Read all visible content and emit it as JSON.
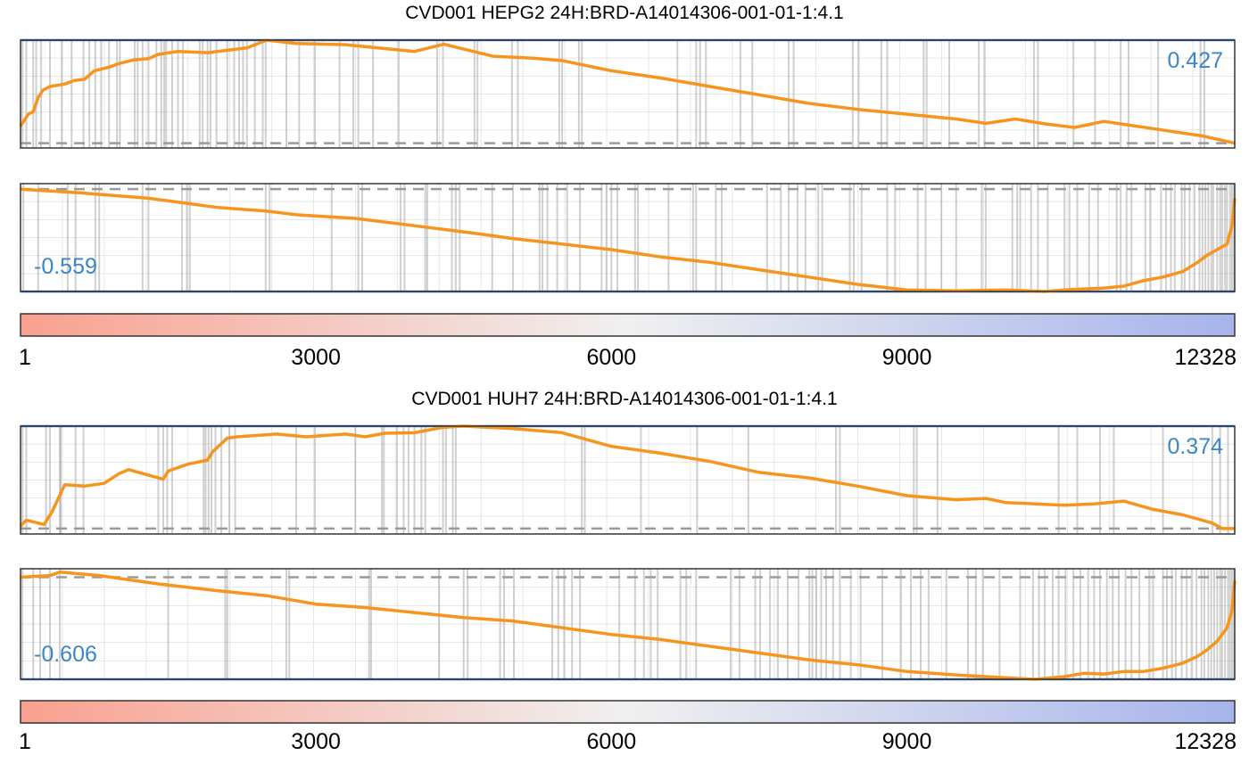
{
  "chart_data": [
    {
      "type": "line",
      "title": "CVD001  HEPG2  24H:BRD-A14014306-001-01-1:4.1",
      "x_axis": {
        "ticks": [
          "1",
          "3000",
          "6000",
          "9000",
          "12328"
        ],
        "range": [
          1,
          12328
        ]
      },
      "colorbar": {
        "from": "#f9a08f",
        "mid": "#f0f0f0",
        "to": "#a6b4ec"
      },
      "colors": {
        "curve": "#f7941d",
        "score_line": "#3b7bbf",
        "score_text": "#3b86c6",
        "zero_line": "#9a9a9a"
      },
      "panels": [
        {
          "name": "up",
          "score_label": "0.427",
          "extreme": 0.427,
          "y_range": [
            -0.02,
            0.427
          ],
          "curve": {
            "x": [
              1,
              80,
              130,
              180,
              230,
              300,
              450,
              550,
              650,
              750,
              900,
              1000,
              1150,
              1300,
              1400,
              1600,
              1900,
              2100,
              2300,
              2500,
              2800,
              3300,
              4000,
              4300,
              4800,
              5200,
              5500,
              6000,
              6500,
              7000,
              7500,
              8000,
              8500,
              9000,
              9500,
              9800,
              10100,
              10400,
              10700,
              11000,
              11500,
              12000,
              12328
            ],
            "y": [
              0.07,
              0.12,
              0.13,
              0.19,
              0.22,
              0.235,
              0.245,
              0.26,
              0.265,
              0.3,
              0.315,
              0.33,
              0.345,
              0.35,
              0.368,
              0.38,
              0.375,
              0.385,
              0.395,
              0.427,
              0.413,
              0.408,
              0.38,
              0.41,
              0.36,
              0.352,
              0.342,
              0.3,
              0.27,
              0.235,
              0.2,
              0.165,
              0.14,
              0.12,
              0.1,
              0.082,
              0.1,
              0.08,
              0.065,
              0.09,
              0.06,
              0.03,
              0.0
            ]
          },
          "hits": [
            20,
            60,
            130,
            160,
            210,
            300,
            420,
            520,
            640,
            700,
            760,
            820,
            900,
            980,
            1010,
            1160,
            1190,
            1240,
            1300,
            1380,
            1430,
            1460,
            1480,
            1540,
            1600,
            1650,
            1820,
            1850,
            1900,
            1930,
            1990,
            2100,
            2170,
            2220,
            2260,
            2300,
            2380,
            2460,
            2490,
            2700,
            2830,
            2990,
            3240,
            3380,
            3430,
            3580,
            3840,
            4230,
            4290,
            4610,
            4640,
            4990,
            5050,
            5470,
            5500,
            5670,
            5700,
            6670,
            6860,
            6900,
            6960,
            7310,
            7430,
            7800,
            7850,
            8450,
            8510,
            8740,
            8800,
            9170,
            9200,
            9430,
            9730,
            9790,
            10290,
            10330,
            10690,
            10910,
            11170,
            11250,
            11550,
            11980,
            12020
          ]
        },
        {
          "name": "down",
          "score_label": "-0.559",
          "extreme": -0.559,
          "y_range": [
            -0.559,
            0.03
          ],
          "curve": {
            "x": [
              1,
              600,
              1300,
              2000,
              2500,
              2800,
              3400,
              4000,
              4300,
              4600,
              5000,
              5500,
              6000,
              6500,
              7000,
              7500,
              8000,
              8500,
              9000,
              9500,
              10000,
              10400,
              10600,
              10800,
              11000,
              11200,
              11400,
              11600,
              11800,
              11950,
              12050,
              12150,
              12250,
              12300,
              12328
            ],
            "y": [
              0.0,
              -0.02,
              -0.05,
              -0.1,
              -0.12,
              -0.14,
              -0.16,
              -0.2,
              -0.22,
              -0.24,
              -0.27,
              -0.3,
              -0.33,
              -0.37,
              -0.4,
              -0.44,
              -0.48,
              -0.52,
              -0.55,
              -0.555,
              -0.55,
              -0.559,
              -0.55,
              -0.545,
              -0.54,
              -0.53,
              -0.5,
              -0.48,
              -0.45,
              -0.4,
              -0.36,
              -0.33,
              -0.3,
              -0.2,
              -0.05
            ]
          },
          "hits": [
            30,
            180,
            480,
            560,
            760,
            800,
            1240,
            1300,
            1640,
            1690,
            1720,
            2490,
            2530,
            3160,
            3430,
            3470,
            3860,
            3900,
            4110,
            4130,
            4380,
            4420,
            4460,
            4790,
            5000,
            5270,
            5300,
            5350,
            5450,
            5550,
            5680,
            5900,
            5950,
            6000,
            6060,
            6240,
            6270,
            6580,
            6830,
            6860,
            7060,
            7120,
            7580,
            7720,
            7800,
            7890,
            7970,
            8100,
            8140,
            8420,
            8460,
            8540,
            8800,
            8880,
            9110,
            9190,
            9350,
            9500,
            9760,
            9800,
            10070,
            10120,
            10150,
            10260,
            10330,
            10430,
            10600,
            10650,
            10730,
            10850,
            10940,
            11130,
            11170,
            11230,
            11280,
            11420,
            11470,
            11580,
            11630,
            11680,
            11720,
            11790,
            11820,
            11870,
            11920,
            11970,
            12000,
            12030,
            12060,
            12090,
            12110,
            12150,
            12180,
            12200,
            12230,
            12250,
            12280,
            12300,
            12320
          ]
        }
      ]
    },
    {
      "type": "line",
      "title": "CVD001  HUH7  24H:BRD-A14014306-001-01-1:4.1",
      "x_axis": {
        "ticks": [
          "1",
          "3000",
          "6000",
          "9000",
          "12328"
        ],
        "range": [
          1,
          12328
        ]
      },
      "colorbar": {
        "from": "#f9a08f",
        "mid": "#f0f0f0",
        "to": "#a6b4ec"
      },
      "colors": {
        "curve": "#f7941d",
        "score_line": "#3b7bbf",
        "score_text": "#3b86c6",
        "zero_line": "#9a9a9a"
      },
      "panels": [
        {
          "name": "up",
          "score_label": "0.374",
          "extreme": 0.374,
          "y_range": [
            -0.02,
            0.374
          ],
          "curve": {
            "x": [
              1,
              60,
              240,
              320,
              450,
              650,
              850,
              1000,
              1100,
              1450,
              1500,
              1700,
              1900,
              1950,
              2100,
              2200,
              2600,
              2900,
              3300,
              3500,
              3700,
              4000,
              4300,
              4500,
              5000,
              5500,
              6000,
              6500,
              7000,
              7500,
              8000,
              8500,
              9000,
              9500,
              9800,
              10000,
              10300,
              10600,
              10900,
              11200,
              11500,
              11800,
              12100,
              12200,
              12328
            ],
            "y": [
              0.01,
              0.03,
              0.015,
              0.06,
              0.16,
              0.155,
              0.165,
              0.2,
              0.215,
              0.18,
              0.21,
              0.235,
              0.25,
              0.28,
              0.33,
              0.335,
              0.345,
              0.335,
              0.345,
              0.335,
              0.348,
              0.35,
              0.37,
              0.374,
              0.365,
              0.35,
              0.3,
              0.275,
              0.245,
              0.205,
              0.185,
              0.155,
              0.12,
              0.105,
              0.11,
              0.095,
              0.09,
              0.085,
              0.09,
              0.1,
              0.07,
              0.05,
              0.02,
              0.0,
              0.0
            ]
          },
          "hits": [
            20,
            60,
            260,
            300,
            400,
            410,
            560,
            640,
            1400,
            1450,
            1490,
            1540,
            1860,
            1880,
            1910,
            1940,
            1980,
            2040,
            2120,
            2180,
            2800,
            2990,
            3400,
            3670,
            3690,
            3820,
            3890,
            3940,
            4000,
            4070,
            4110,
            4290,
            4320,
            4390,
            4420,
            5700,
            5730,
            6300,
            6870,
            7390,
            8280,
            8320,
            9070,
            9100,
            9310,
            10540,
            10730,
            10960,
            11100,
            11600,
            12100,
            12180,
            12260
          ]
        },
        {
          "name": "down",
          "score_label": "-0.606",
          "extreme": -0.606,
          "y_range": [
            -0.606,
            0.05
          ],
          "curve": {
            "x": [
              1,
              300,
              400,
              800,
              1400,
              2000,
              2500,
              3000,
              3500,
              4000,
              4500,
              5000,
              5500,
              6000,
              6500,
              7000,
              7500,
              8000,
              8500,
              9000,
              9500,
              9800,
              10100,
              10300,
              10600,
              10800,
              11000,
              11200,
              11400,
              11600,
              11800,
              11950,
              12050,
              12150,
              12250,
              12300,
              12328
            ],
            "y": [
              0.0,
              0.01,
              0.03,
              0.01,
              -0.04,
              -0.08,
              -0.11,
              -0.16,
              -0.18,
              -0.21,
              -0.24,
              -0.26,
              -0.3,
              -0.34,
              -0.37,
              -0.41,
              -0.45,
              -0.49,
              -0.52,
              -0.56,
              -0.58,
              -0.59,
              -0.6,
              -0.606,
              -0.59,
              -0.57,
              -0.575,
              -0.56,
              -0.56,
              -0.54,
              -0.51,
              -0.47,
              -0.43,
              -0.38,
              -0.3,
              -0.2,
              -0.02
            ]
          },
          "hits": [
            20,
            130,
            200,
            300,
            400,
            1500,
            2080,
            2100,
            2700,
            2730,
            3540,
            3560,
            4250,
            4500,
            4540,
            4870,
            4910,
            5010,
            5400,
            5460,
            5520,
            5600,
            5680,
            6080,
            6240,
            6330,
            6400,
            6470,
            6700,
            6760,
            6860,
            7210,
            7300,
            7460,
            7510,
            7610,
            7690,
            7790,
            7900,
            8010,
            8040,
            8080,
            8130,
            8180,
            8250,
            8320,
            8430,
            8530,
            8750,
            8940,
            9040,
            9140,
            9220,
            9400,
            9620,
            9700,
            9770,
            9940,
            10150,
            10280,
            10340,
            10400,
            10480,
            10540,
            10610,
            10690,
            10760,
            10840,
            10900,
            10960,
            11030,
            11090,
            11150,
            11220,
            11280,
            11360,
            11460,
            11500,
            11600,
            11640,
            11690,
            11730,
            11790,
            11840,
            11890,
            11940,
            11990,
            12020,
            12060,
            12090,
            12120,
            12150,
            12180,
            12200,
            12230,
            12260,
            12280,
            12300,
            12320
          ]
        }
      ]
    }
  ]
}
